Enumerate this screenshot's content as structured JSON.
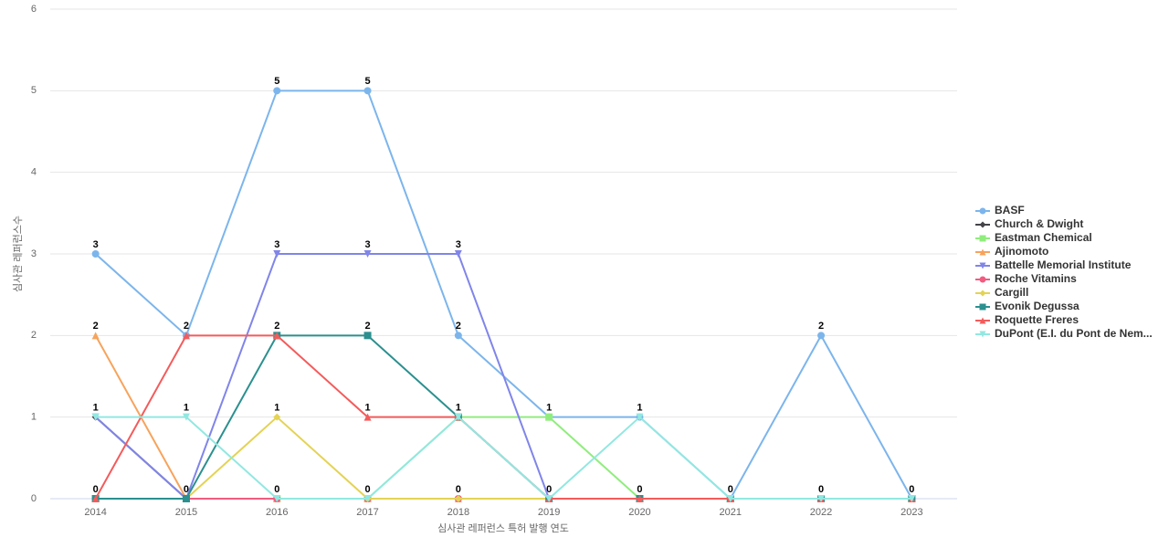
{
  "chart_data": {
    "type": "line",
    "x_label": "심사관 레퍼런스 특허 발행 연도",
    "y_label": "심사관 레퍼런스수",
    "categories": [
      "2014",
      "2015",
      "2016",
      "2017",
      "2018",
      "2019",
      "2020",
      "2021",
      "2022",
      "2023"
    ],
    "ylim": [
      0,
      6
    ],
    "yticks": [
      0,
      1,
      2,
      3,
      4,
      5,
      6
    ],
    "grid": true,
    "legend": "right",
    "series": [
      {
        "name": "BASF",
        "color": "#7cb5ec",
        "marker": "circle",
        "values": [
          3,
          2,
          5,
          5,
          2,
          1,
          1,
          0,
          2,
          0
        ]
      },
      {
        "name": "Church & Dwight",
        "color": "#434348",
        "marker": "diamond",
        "values": [
          1,
          0,
          0,
          0,
          0,
          0,
          0,
          0,
          0,
          0
        ]
      },
      {
        "name": "Eastman Chemical",
        "color": "#90ed7d",
        "marker": "square",
        "values": [
          0,
          0,
          0,
          0,
          1,
          1,
          0,
          0,
          0,
          0
        ]
      },
      {
        "name": "Ajinomoto",
        "color": "#f7a35c",
        "marker": "triangle",
        "values": [
          2,
          0,
          0,
          0,
          0,
          0,
          0,
          0,
          0,
          0
        ]
      },
      {
        "name": "Battelle Memorial Institute",
        "color": "#8085e9",
        "marker": "triangle-down",
        "values": [
          1,
          0,
          3,
          3,
          3,
          0,
          0,
          0,
          0,
          0
        ]
      },
      {
        "name": "Roche Vitamins",
        "color": "#f15c80",
        "marker": "circle",
        "values": [
          0,
          0,
          0,
          0,
          0,
          0,
          0,
          0,
          0,
          0
        ]
      },
      {
        "name": "Cargill",
        "color": "#e4d354",
        "marker": "diamond",
        "values": [
          0,
          0,
          1,
          0,
          0,
          0,
          0,
          0,
          0,
          0
        ]
      },
      {
        "name": "Evonik Degussa",
        "color": "#2b908f",
        "marker": "square",
        "values": [
          0,
          0,
          2,
          2,
          1,
          0,
          0,
          0,
          0,
          0
        ]
      },
      {
        "name": "Roquette Freres",
        "color": "#f45b5b",
        "marker": "triangle",
        "values": [
          0,
          2,
          2,
          1,
          1,
          0,
          0,
          0,
          0,
          0
        ]
      },
      {
        "name": "DuPont (E.I. du Pont de Nem...",
        "color": "#91e8e1",
        "marker": "triangle-down",
        "values": [
          1,
          1,
          0,
          0,
          1,
          0,
          1,
          0,
          0,
          0
        ]
      }
    ]
  }
}
